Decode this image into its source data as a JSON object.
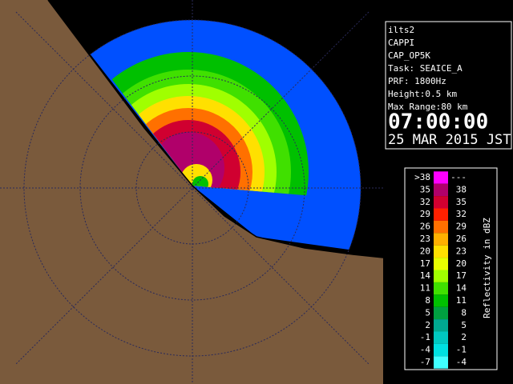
{
  "panel": {
    "lines": [
      "ilts2",
      "CAPPI",
      "CAP_OP5K",
      "Task: SEAICE_A",
      "PRF: 1800Hz",
      "Height:0.5 km",
      "Max Range:80 km"
    ],
    "time": "07:00:00",
    "date": "25 MAR 2015 JST"
  },
  "legend": {
    "title": "Reflectivity in dBZ",
    "rows": [
      {
        "low": ">38",
        "high": "---",
        "color": "#ff00ff"
      },
      {
        "low": "35",
        "high": "38",
        "color": "#b0006a"
      },
      {
        "low": "32",
        "high": "35",
        "color": "#d00030"
      },
      {
        "low": "29",
        "high": "32",
        "color": "#ff2000"
      },
      {
        "low": "26",
        "high": "29",
        "color": "#ff7000"
      },
      {
        "low": "23",
        "high": "26",
        "color": "#ffb000"
      },
      {
        "low": "20",
        "high": "23",
        "color": "#ffe000"
      },
      {
        "low": "17",
        "high": "20",
        "color": "#e8ff00"
      },
      {
        "low": "14",
        "high": "17",
        "color": "#a0ff00"
      },
      {
        "low": "11",
        "high": "14",
        "color": "#40e000"
      },
      {
        "low": "8",
        "high": "11",
        "color": "#00c000"
      },
      {
        "low": "5",
        "high": "8",
        "color": "#00a040"
      },
      {
        "low": "2",
        "high": "5",
        "color": "#00a890"
      },
      {
        "low": "-1",
        "high": "2",
        "color": "#00c8c0"
      },
      {
        "low": "-4",
        "high": "-1",
        "color": "#00e0e0"
      },
      {
        "low": "-7",
        "high": "-4",
        "color": "#40ffff"
      }
    ]
  }
}
